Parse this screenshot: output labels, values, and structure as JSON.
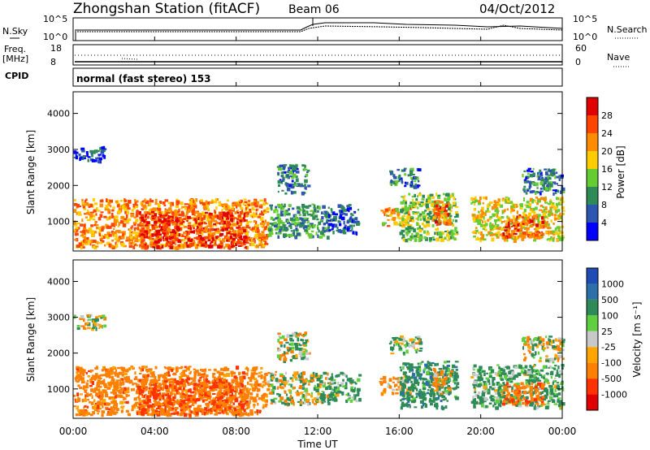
{
  "header": {
    "station": "Zhongshan Station (fitACF)",
    "beam": "Beam 06",
    "date": "04/Oct/2012"
  },
  "noise_panel": {
    "left_label": "N.Sky",
    "right_label": "N.Search",
    "left_top": "10^5",
    "left_bottom": "10^0",
    "right_top": "10^5",
    "right_bottom": "10^0"
  },
  "freq_panel": {
    "left_label_1": "Freq.",
    "left_label_2": "[MHz]",
    "left_top": "18",
    "left_bottom": "8",
    "right_label": "Nave",
    "right_top": "60",
    "right_bottom": "0"
  },
  "cpid": {
    "label": "CPID",
    "value": "normal (fast stereo) 153"
  },
  "power_panel": {
    "ylabel": "Slant Range [km]",
    "yticks": [
      "1000",
      "2000",
      "3000",
      "4000"
    ],
    "colorbar_label": "Power [dB]",
    "colorbar_ticks": [
      "4",
      "8",
      "12",
      "16",
      "20",
      "24",
      "28"
    ],
    "colors": [
      "#0000ff",
      "#2e55b0",
      "#2e8b57",
      "#66cc33",
      "#ffcc00",
      "#ff8c00",
      "#ff4500",
      "#e00000"
    ]
  },
  "velocity_panel": {
    "ylabel": "Slant Range [km]",
    "yticks": [
      "1000",
      "2000",
      "3000",
      "4000"
    ],
    "colorbar_label": "Velocity [m s⁻¹]",
    "colorbar_ticks": [
      "1000",
      "500",
      "100",
      "25",
      "-25",
      "-100",
      "-500",
      "-1000"
    ],
    "colors": [
      "#1e4bb4",
      "#2d6fa8",
      "#2e8b57",
      "#5fcf3f",
      "#c8c8c8",
      "#ffa500",
      "#ff7f00",
      "#ff3300",
      "#e00000"
    ]
  },
  "x_axis": {
    "ticks": [
      "00:00",
      "04:00",
      "08:00",
      "12:00",
      "16:00",
      "20:00",
      "00:00"
    ],
    "label": "Time UT"
  },
  "chart_data": {
    "type": "heatmap",
    "title": "Zhongshan Station (fitACF)",
    "x_range_hours": [
      0,
      24
    ],
    "y_range_km": [
      180,
      4600
    ],
    "power_dB_range": [
      0,
      30
    ],
    "velocity_range": [
      -1000,
      1000
    ],
    "scatter_blobs": [
      {
        "t0": 0.0,
        "t1": 9.5,
        "r0": 300,
        "r1": 1650,
        "power": 22,
        "velocity": -300
      },
      {
        "t0": 3.2,
        "t1": 8.5,
        "r0": 300,
        "r1": 1300,
        "power": 28,
        "velocity": -500
      },
      {
        "t0": 9.5,
        "t1": 12.5,
        "r0": 600,
        "r1": 1500,
        "power": 10,
        "velocity": 20
      },
      {
        "t0": 10.0,
        "t1": 11.5,
        "r0": 1800,
        "r1": 2600,
        "power": 8,
        "velocity": 20
      },
      {
        "t0": 0.0,
        "t1": 1.5,
        "r0": 2700,
        "r1": 3100,
        "power": 6,
        "velocity": 10
      },
      {
        "t0": 12.5,
        "t1": 14.0,
        "r0": 700,
        "r1": 1500,
        "power": 6,
        "velocity": 200
      },
      {
        "t0": 15.0,
        "t1": 16.5,
        "r0": 900,
        "r1": 1400,
        "power": 20,
        "velocity": -200
      },
      {
        "t0": 16.0,
        "t1": 18.8,
        "r0": 500,
        "r1": 1800,
        "power": 14,
        "velocity": 300
      },
      {
        "t0": 17.6,
        "t1": 18.5,
        "r0": 900,
        "r1": 1600,
        "power": 26,
        "velocity": -150
      },
      {
        "t0": 15.5,
        "t1": 17.0,
        "r0": 2000,
        "r1": 2500,
        "power": 8,
        "velocity": 100
      },
      {
        "t0": 19.5,
        "t1": 24.0,
        "r0": 500,
        "r1": 1700,
        "power": 18,
        "velocity": 200
      },
      {
        "t0": 21.0,
        "t1": 23.0,
        "r0": 600,
        "r1": 1200,
        "power": 26,
        "velocity": -400
      },
      {
        "t0": 22.0,
        "t1": 24.0,
        "r0": 1800,
        "r1": 2500,
        "power": 8,
        "velocity": 10
      }
    ]
  }
}
